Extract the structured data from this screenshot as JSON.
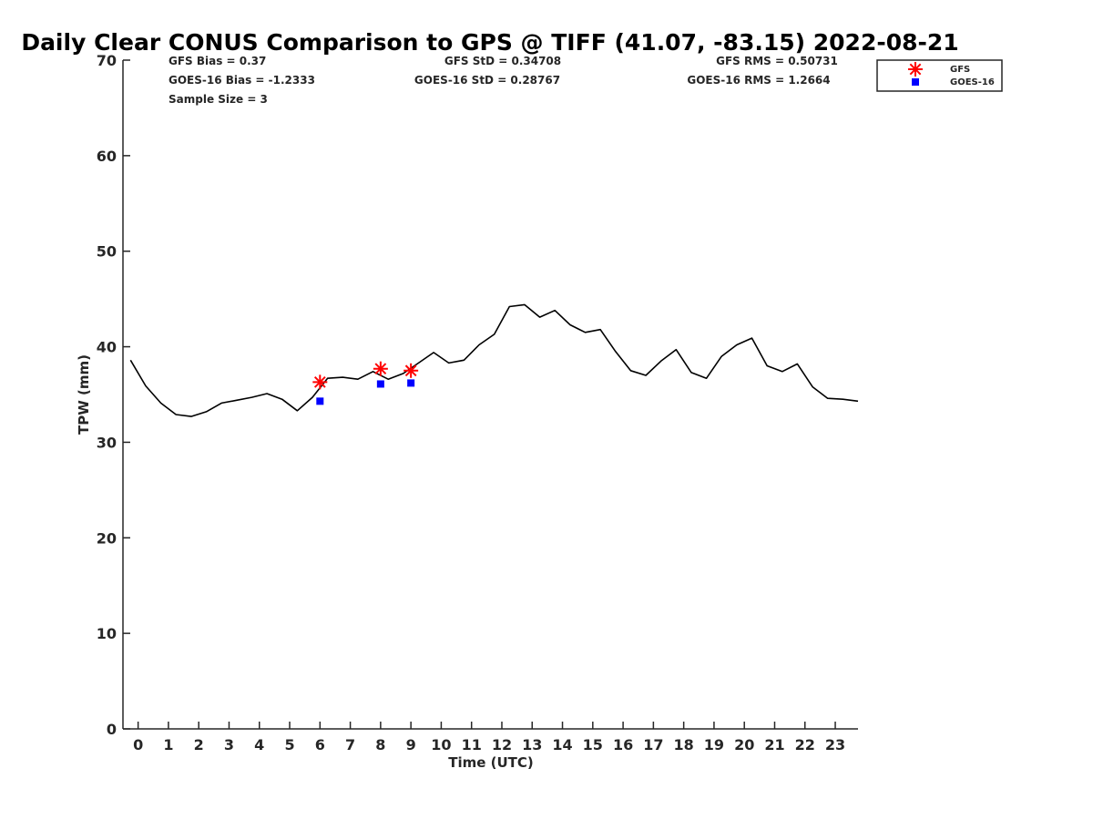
{
  "chart_data": {
    "type": "line",
    "title": "Daily Clear CONUS Comparison to GPS @ TIFF (41.07, -83.15) 2022-08-21",
    "xlabel": "Time (UTC)",
    "ylabel": "TPW (mm)",
    "xlim": [
      -0.5,
      23.75
    ],
    "ylim": [
      0,
      70
    ],
    "grid": false,
    "y_ticks": [
      "0",
      "10",
      "20",
      "30",
      "40",
      "50",
      "60",
      "70"
    ],
    "x_ticks": [
      "0",
      "1",
      "2",
      "3",
      "4",
      "5",
      "6",
      "7",
      "8",
      "9",
      "10",
      "11",
      "12",
      "13",
      "14",
      "15",
      "16",
      "17",
      "18",
      "19",
      "20",
      "21",
      "22",
      "23"
    ],
    "stats": {
      "gfs_bias": "GFS Bias = 0.37",
      "goes_bias": "GOES-16 Bias = -1.2333",
      "sample_size": "Sample Size = 3",
      "gfs_std": "GFS StD = 0.34708",
      "goes_std": "GOES-16 StD = 0.28767",
      "gfs_rms": "GFS RMS = 0.50731",
      "goes_rms": "GOES-16 RMS = 1.2664"
    },
    "legend": {
      "position": "top-right",
      "entries": [
        "GFS",
        "GOES-16"
      ]
    },
    "gps_line": {
      "color": "#000000",
      "x": [
        -0.25,
        0.25,
        0.75,
        1.25,
        1.75,
        2.25,
        2.75,
        3.25,
        3.75,
        4.25,
        4.75,
        5.25,
        5.75,
        6.25,
        6.75,
        7.25,
        7.75,
        8.25,
        8.75,
        9.25,
        9.75,
        10.25,
        10.75,
        11.25,
        11.75,
        12.25,
        12.75,
        13.25,
        13.75,
        14.25,
        14.75,
        15.25,
        15.75,
        16.25,
        16.75,
        17.25,
        17.75,
        18.25,
        18.75,
        19.25,
        19.75,
        20.25,
        20.75,
        21.25,
        21.75,
        22.25,
        22.75,
        23.25,
        23.75
      ],
      "y": [
        38.6,
        35.9,
        34.1,
        32.9,
        32.7,
        33.2,
        34.1,
        34.4,
        34.7,
        35.1,
        34.5,
        33.3,
        34.7,
        36.7,
        36.8,
        36.6,
        37.4,
        36.6,
        37.2,
        38.3,
        39.4,
        38.3,
        38.6,
        40.2,
        41.3,
        44.2,
        44.4,
        43.1,
        43.8,
        42.3,
        41.5,
        41.8,
        39.5,
        37.5,
        37.0,
        38.5,
        39.7,
        37.3,
        36.7,
        39.0,
        40.2,
        40.9,
        38.0,
        37.4,
        38.2,
        35.8,
        34.6,
        34.5,
        34.3
      ]
    },
    "series": [
      {
        "name": "GFS",
        "marker": "asterisk",
        "color": "#ff0000",
        "x": [
          6,
          8,
          9
        ],
        "values": [
          36.3,
          37.7,
          37.5
        ]
      },
      {
        "name": "GOES-16",
        "marker": "square",
        "color": "#0000ff",
        "x": [
          6,
          8,
          9
        ],
        "values": [
          34.3,
          36.1,
          36.2
        ]
      }
    ]
  }
}
